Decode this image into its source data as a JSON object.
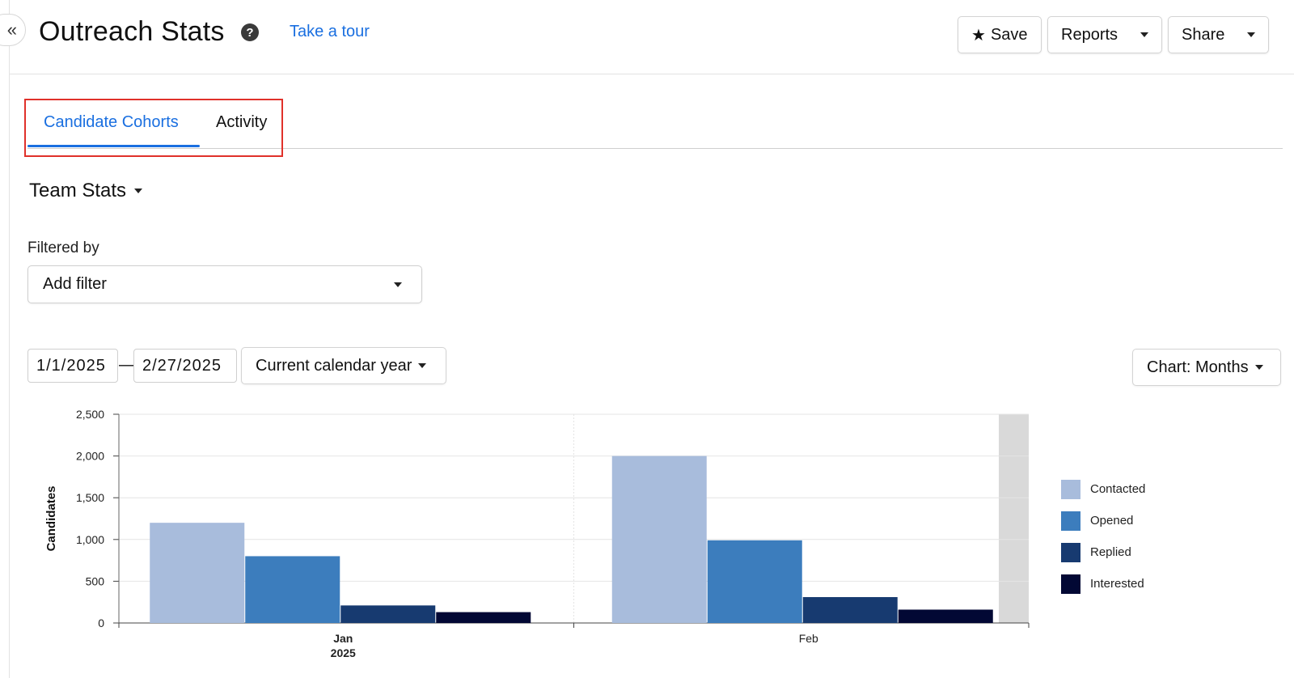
{
  "header": {
    "title": "Outreach Stats",
    "help_icon": "question-circle-icon",
    "tour_link": "Take a tour",
    "collapse_icon": "double-chevron-left-icon",
    "buttons": {
      "save": "Save",
      "reports": "Reports",
      "share": "Share"
    }
  },
  "tabs": [
    {
      "label": "Candidate Cohorts",
      "active": true
    },
    {
      "label": "Activity",
      "active": false
    }
  ],
  "colors": {
    "accent": "#1a6fe0",
    "highlight_box": "#e0312a"
  },
  "team_stats_label": "Team Stats",
  "filters": {
    "label": "Filtered by",
    "placeholder": "Add filter"
  },
  "date_range": {
    "start": "1/1/2025",
    "separator": "—",
    "end": "2/27/2025",
    "preset": "Current calendar year"
  },
  "chart_select": "Chart: Months",
  "chart_data": {
    "type": "bar",
    "ylabel": "Candidates",
    "xlabel": "",
    "categories": [
      "Jan",
      "Feb"
    ],
    "category_sublabels": [
      "2025",
      ""
    ],
    "ylim": [
      0,
      2500
    ],
    "yticks": [
      "0",
      "500",
      "1,000",
      "1,500",
      "2,000",
      "2,500"
    ],
    "ytick_values": [
      0,
      500,
      1000,
      1500,
      2000,
      2500
    ],
    "grid": true,
    "legend_position": "right",
    "series": [
      {
        "name": "Contacted",
        "color": "#a8bcdc",
        "values": [
          1200,
          2000
        ]
      },
      {
        "name": "Opened",
        "color": "#3c7dbd",
        "values": [
          800,
          990
        ]
      },
      {
        "name": "Replied",
        "color": "#173a70",
        "values": [
          210,
          310
        ]
      },
      {
        "name": "Interested",
        "color": "#020834",
        "values": [
          130,
          160
        ]
      }
    ]
  }
}
